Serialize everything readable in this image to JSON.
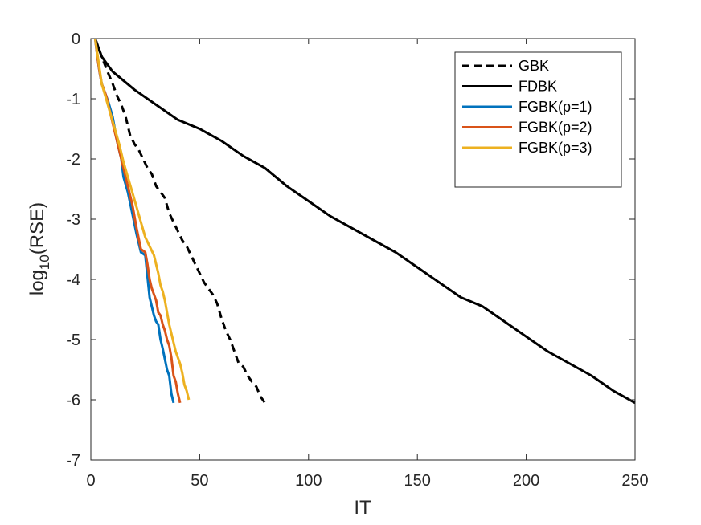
{
  "chart_data": {
    "type": "line",
    "xlabel": "IT",
    "ylabel": {
      "base": "log",
      "subscript": "10",
      "rest": "(RSE)"
    },
    "xlim": [
      0,
      250
    ],
    "ylim": [
      -7,
      0
    ],
    "xticks": [
      0,
      50,
      100,
      150,
      200,
      250
    ],
    "xtick_labels": [
      "0",
      "50",
      "100",
      "150",
      "200",
      "250"
    ],
    "yticks": [
      0,
      -1,
      -2,
      -3,
      -4,
      -5,
      -6,
      -7
    ],
    "ytick_labels": [
      "0",
      "-1",
      "-2",
      "-3",
      "-4",
      "-5",
      "-6",
      "-7"
    ],
    "grid": false,
    "legend_position": "top-right",
    "series": [
      {
        "name": "GBK",
        "color": "#000000",
        "dash": "dashed",
        "x": [
          2,
          5,
          8,
          10,
          12,
          14,
          16,
          18,
          20,
          22,
          24,
          26,
          28,
          30,
          32,
          34,
          36,
          38,
          40,
          42,
          44,
          46,
          48,
          50,
          52,
          54,
          56,
          58,
          60,
          62,
          64,
          66,
          68,
          70,
          72,
          74,
          76,
          78,
          80
        ],
        "y": [
          0,
          -0.3,
          -0.58,
          -0.75,
          -0.95,
          -1.1,
          -1.3,
          -1.6,
          -1.75,
          -1.85,
          -2.0,
          -2.15,
          -2.25,
          -2.45,
          -2.55,
          -2.65,
          -2.9,
          -3.05,
          -3.2,
          -3.35,
          -3.45,
          -3.6,
          -3.75,
          -3.9,
          -4.05,
          -4.15,
          -4.25,
          -4.4,
          -4.65,
          -4.85,
          -5.0,
          -5.2,
          -5.4,
          -5.45,
          -5.6,
          -5.7,
          -5.78,
          -5.95,
          -6.05
        ]
      },
      {
        "name": "FDBK",
        "color": "#000000",
        "dash": "solid",
        "x": [
          2,
          5,
          10,
          20,
          30,
          40,
          50,
          60,
          70,
          80,
          90,
          100,
          110,
          120,
          130,
          140,
          150,
          160,
          170,
          180,
          190,
          200,
          210,
          220,
          230,
          240,
          250
        ],
        "y": [
          0,
          -0.3,
          -0.55,
          -0.85,
          -1.1,
          -1.35,
          -1.5,
          -1.7,
          -1.95,
          -2.15,
          -2.45,
          -2.7,
          -2.95,
          -3.15,
          -3.35,
          -3.55,
          -3.8,
          -4.05,
          -4.3,
          -4.45,
          -4.7,
          -4.95,
          -5.2,
          -5.4,
          -5.6,
          -5.85,
          -6.05
        ]
      },
      {
        "name": "FGBK(p=1)",
        "color": "#0072BD",
        "dash": "solid",
        "x": [
          2,
          3,
          4,
          5,
          6,
          8,
          10,
          12,
          14,
          15,
          17,
          19,
          21,
          23,
          25,
          26,
          27,
          29,
          30,
          31,
          32,
          33,
          35,
          36,
          37,
          38
        ],
        "y": [
          0,
          -0.3,
          -0.55,
          -0.75,
          -0.85,
          -1.05,
          -1.3,
          -1.7,
          -2.0,
          -2.3,
          -2.55,
          -2.9,
          -3.25,
          -3.55,
          -3.6,
          -3.95,
          -4.3,
          -4.6,
          -4.7,
          -4.75,
          -5.0,
          -5.15,
          -5.5,
          -5.6,
          -5.9,
          -6.05
        ]
      },
      {
        "name": "FGBK(p=2)",
        "color": "#D95319",
        "dash": "solid",
        "x": [
          2,
          3,
          4,
          5,
          7,
          9,
          11,
          13,
          15,
          17,
          19,
          21,
          23,
          25,
          26,
          27,
          28,
          30,
          31,
          32,
          33,
          34,
          35,
          36,
          37,
          38,
          39,
          40,
          41
        ],
        "y": [
          0,
          -0.3,
          -0.55,
          -0.75,
          -0.95,
          -1.25,
          -1.55,
          -1.85,
          -2.15,
          -2.45,
          -2.75,
          -3.15,
          -3.5,
          -3.55,
          -3.75,
          -4.0,
          -4.15,
          -4.35,
          -4.55,
          -4.6,
          -4.75,
          -4.85,
          -5.0,
          -5.1,
          -5.3,
          -5.6,
          -5.7,
          -5.9,
          -6.05
        ]
      },
      {
        "name": "FGBK(p=3)",
        "color": "#EDB120",
        "dash": "solid",
        "x": [
          2,
          3,
          4,
          5,
          7,
          9,
          11,
          13,
          15,
          17,
          19,
          21,
          23,
          25,
          27,
          29,
          31,
          32,
          33,
          34,
          35,
          36,
          37,
          38,
          39,
          40,
          41,
          42,
          43,
          44,
          45
        ],
        "y": [
          0,
          -0.25,
          -0.5,
          -0.75,
          -1.0,
          -1.25,
          -1.5,
          -1.75,
          -2.05,
          -2.3,
          -2.55,
          -2.8,
          -3.05,
          -3.3,
          -3.45,
          -3.6,
          -3.9,
          -4.1,
          -4.2,
          -4.35,
          -4.55,
          -4.75,
          -4.9,
          -5.05,
          -5.2,
          -5.3,
          -5.4,
          -5.55,
          -5.75,
          -5.85,
          -6.0
        ]
      }
    ]
  }
}
